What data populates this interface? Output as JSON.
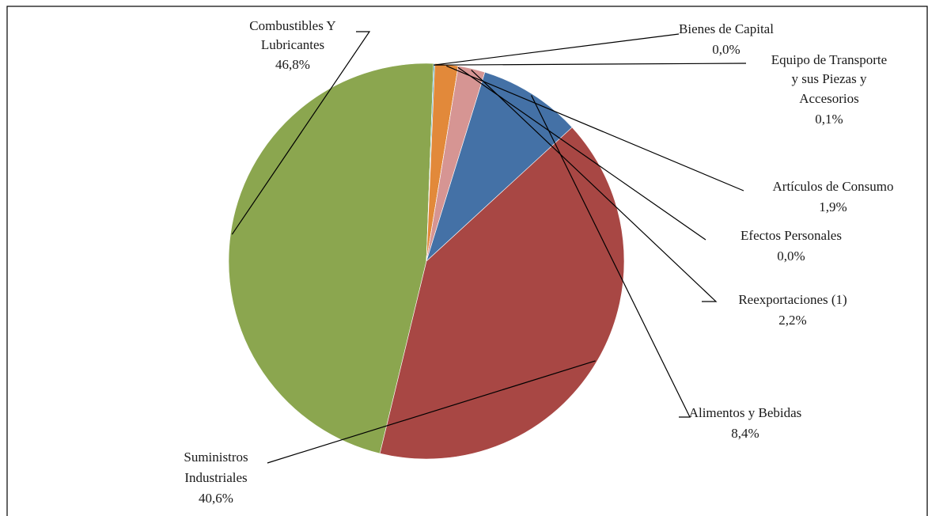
{
  "chart_data": {
    "type": "pie",
    "title": "",
    "slices": [
      {
        "label_lines": [
          "Combustibles Y",
          "Lubricantes"
        ],
        "value_label": "46,8%",
        "value": 46.8,
        "color": "#8BA64F"
      },
      {
        "label_lines": [
          "Bienes de Capital"
        ],
        "value_label": "0,0%",
        "value": 0.0,
        "color": "#6E58A0"
      },
      {
        "label_lines": [
          "Equipo de Transporte",
          "y sus Piezas  y",
          "Accesorios"
        ],
        "value_label": "0,1%",
        "value": 0.1,
        "color": "#3FA0BE"
      },
      {
        "label_lines": [
          "Artículos de Consumo"
        ],
        "value_label": "1,9%",
        "value": 1.9,
        "color": "#E2893A"
      },
      {
        "label_lines": [
          "Efectos Personales"
        ],
        "value_label": "0,0%",
        "value": 0.0,
        "color": "#9EB8DB"
      },
      {
        "label_lines": [
          "Reexportaciones  (1)"
        ],
        "value_label": "2,2%",
        "value": 2.2,
        "color": "#D69593"
      },
      {
        "label_lines": [
          "Alimentos y Bebidas"
        ],
        "value_label": "8,4%",
        "value": 8.4,
        "color": "#4471A6"
      },
      {
        "label_lines": [
          "Suministros",
          "Industriales"
        ],
        "value_label": "40,6%",
        "value": 40.6,
        "color": "#A84744"
      }
    ],
    "legend": "none"
  }
}
